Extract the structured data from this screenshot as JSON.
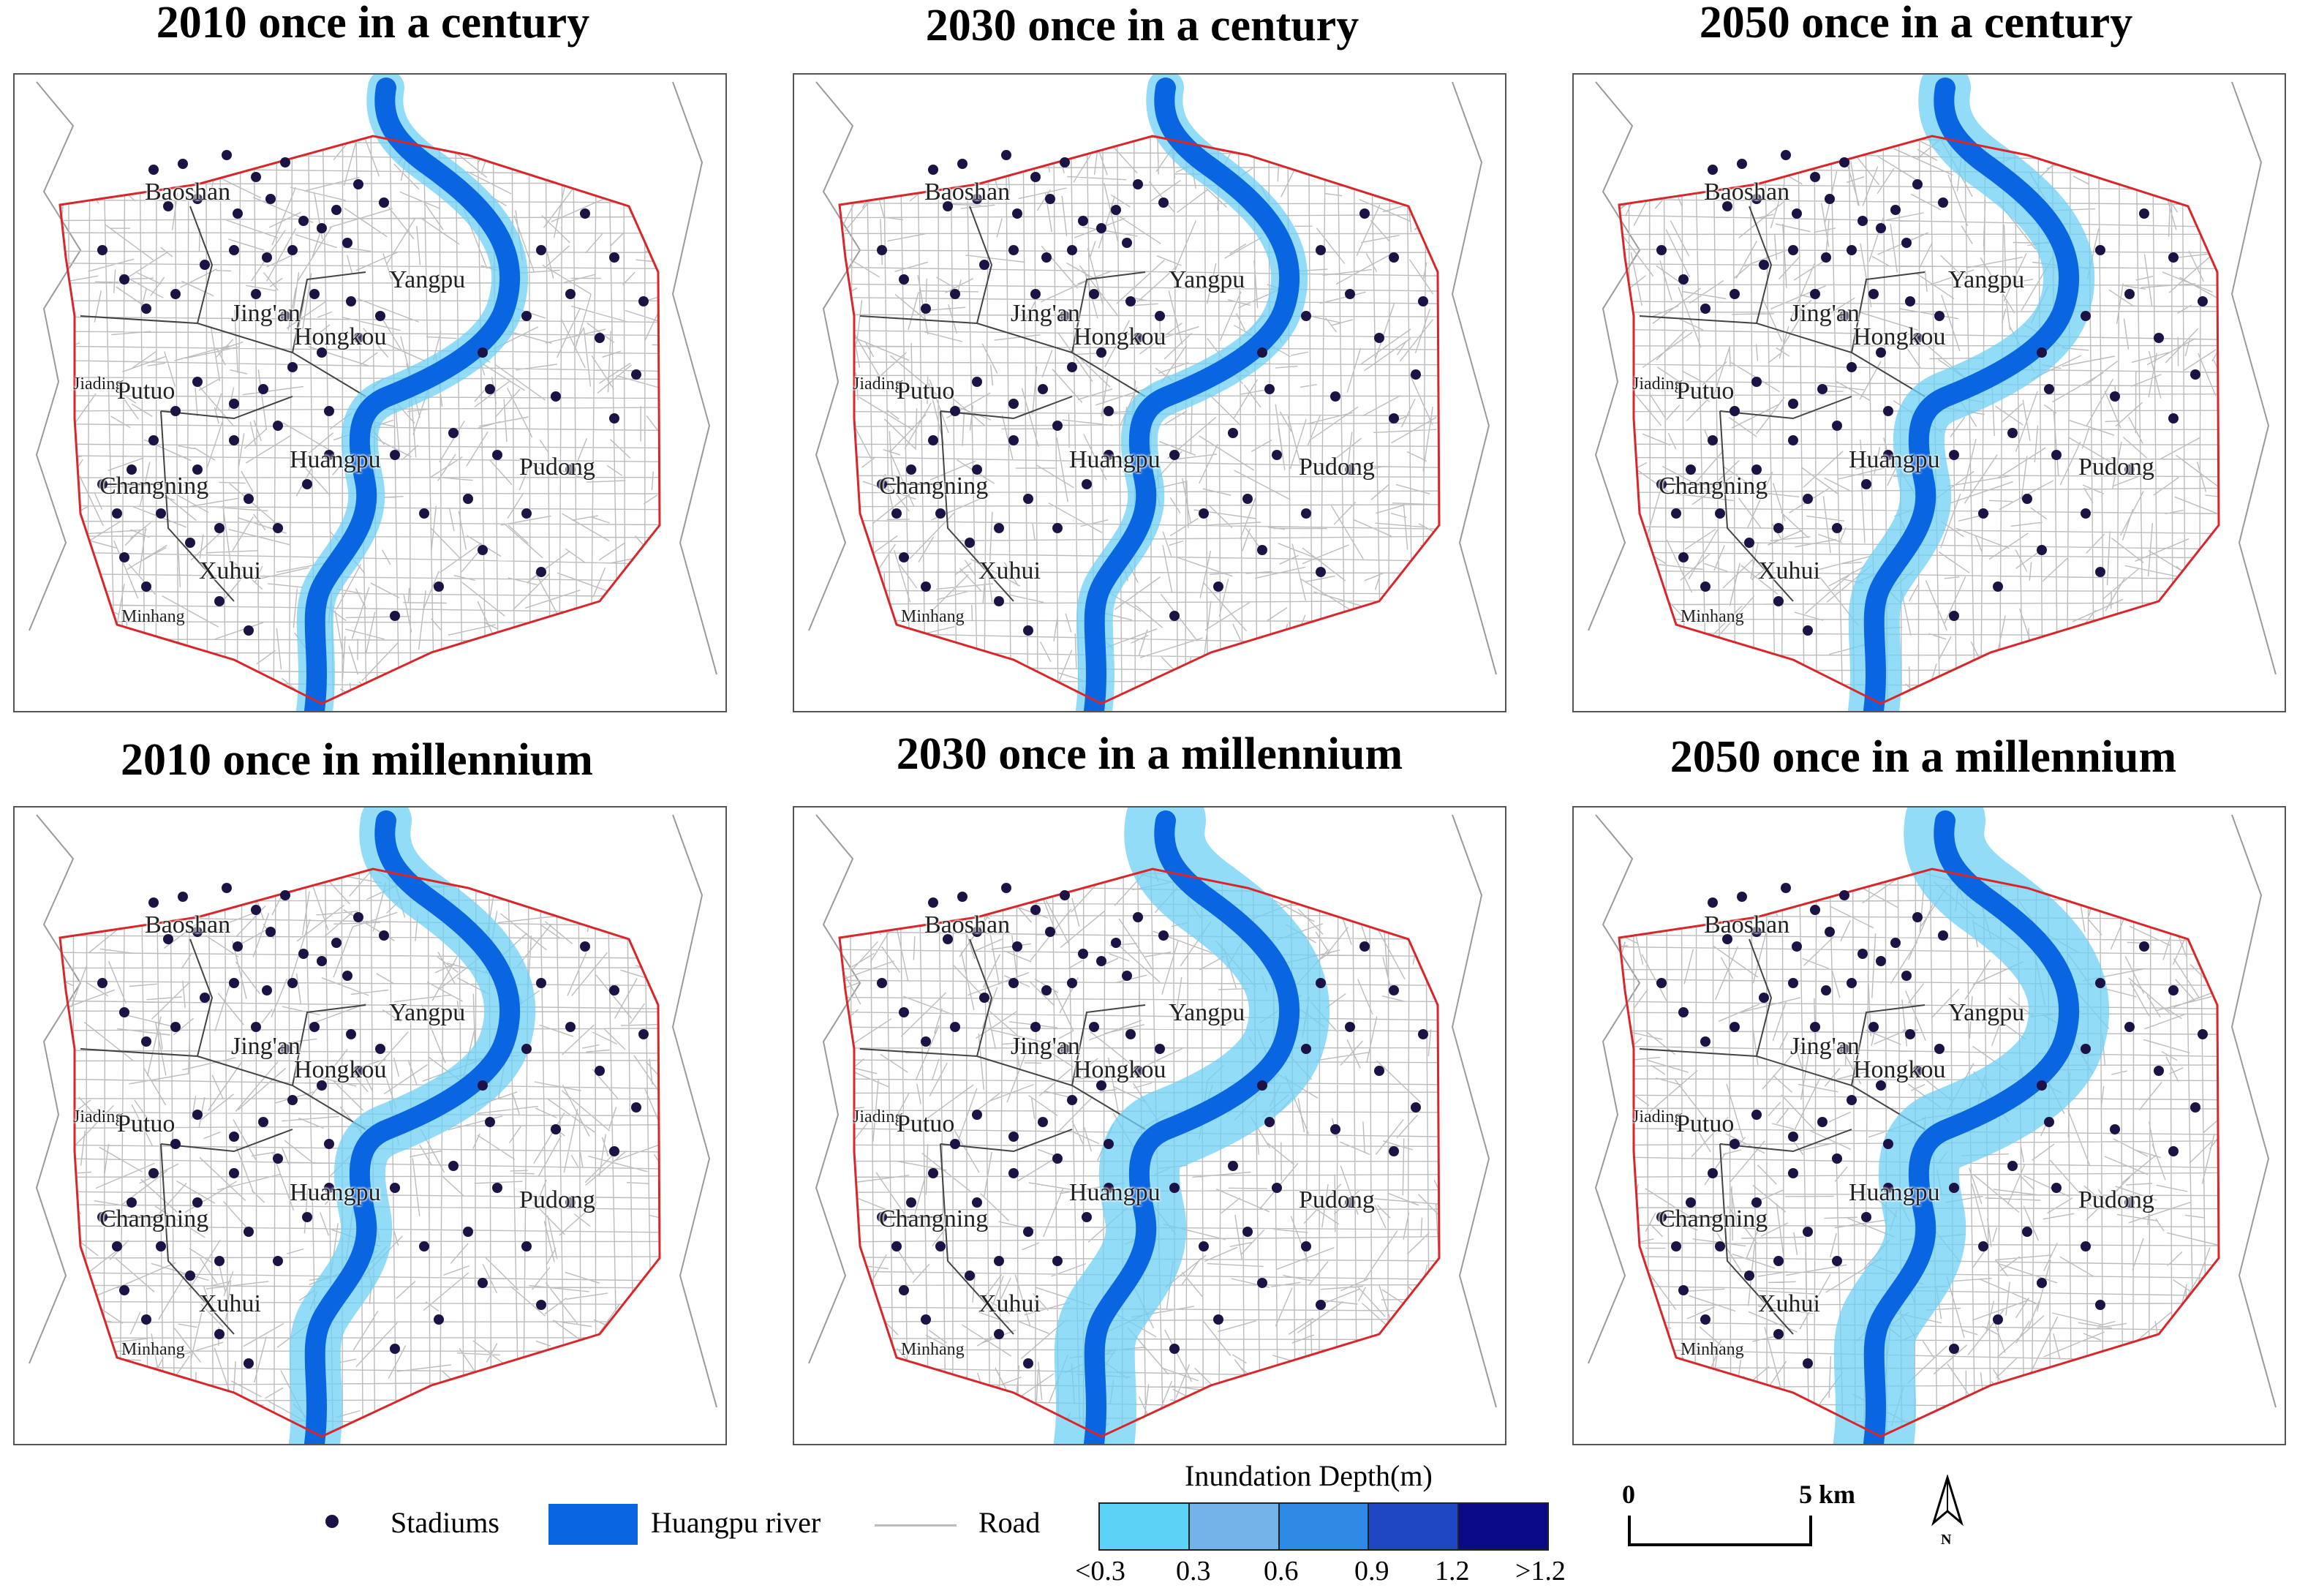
{
  "panels": [
    {
      "title": "2010 once in a century",
      "flood": "low"
    },
    {
      "title": "2030 once in a century",
      "flood": "low"
    },
    {
      "title": "2050 once in a century",
      "flood": "mid"
    },
    {
      "title": "2010 once in millennium",
      "flood": "mid"
    },
    {
      "title": "2030 once in a millennium",
      "flood": "high"
    },
    {
      "title": "2050 once in a millennium",
      "flood": "high"
    }
  ],
  "districts": [
    "Baoshan",
    "Yangpu",
    "Jing'an",
    "Hongkou",
    "Jiading",
    "Putuo",
    "Huangpu",
    "Pudong",
    "Changning",
    "Xuhui",
    "Minhang"
  ],
  "legend": {
    "stadiums": "Stadiums",
    "river": "Huangpu river",
    "road": "Road",
    "depth_title": "Inundation Depth(m)",
    "depth_ticks": [
      "<0.3",
      "0.3",
      "0.6",
      "0.9",
      "1.2",
      ">1.2"
    ],
    "depth_colors": [
      "#5bd3f7",
      "#74b3e8",
      "#2f8ae6",
      "#1f47c4",
      "#0a0a86"
    ]
  },
  "scale": {
    "start": "0",
    "end": "5 km"
  },
  "north": "N",
  "colors": {
    "river": "#0a66e0",
    "boundary": "#d9262b",
    "road": "#bcbcbc",
    "stadium": "#1c1246",
    "flood": "#6fd0f4"
  }
}
